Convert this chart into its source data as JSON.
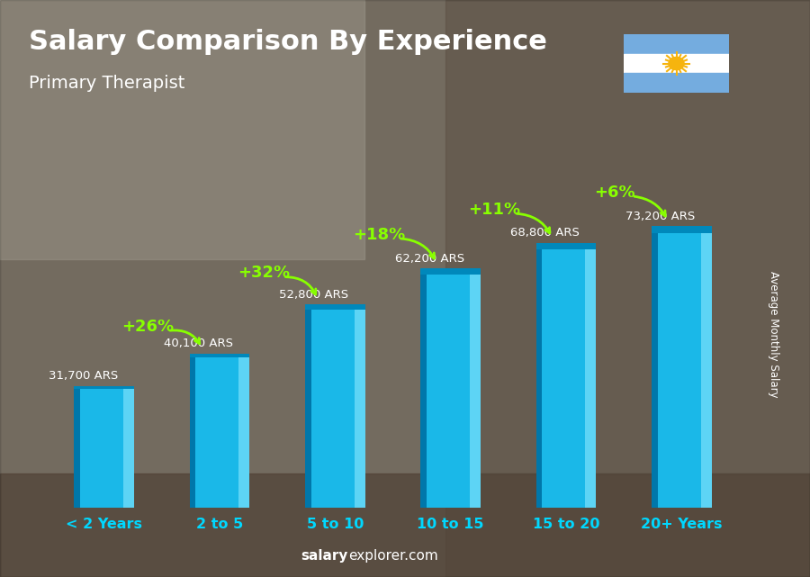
{
  "title": "Salary Comparison By Experience",
  "subtitle": "Primary Therapist",
  "categories": [
    "< 2 Years",
    "2 to 5",
    "5 to 10",
    "10 to 15",
    "15 to 20",
    "20+ Years"
  ],
  "values": [
    31700,
    40100,
    52800,
    62200,
    68800,
    73200
  ],
  "value_labels": [
    "31,700 ARS",
    "40,100 ARS",
    "52,800 ARS",
    "62,200 ARS",
    "68,800 ARS",
    "73,200 ARS"
  ],
  "pct_labels": [
    "+26%",
    "+32%",
    "+18%",
    "+11%",
    "+6%"
  ],
  "bar_color_main": "#1ab8e8",
  "bar_color_light": "#5dd4f5",
  "bar_color_dark": "#0088bb",
  "bar_color_side": "#0077aa",
  "bg_color": "#8a8070",
  "title_color": "#ffffff",
  "subtitle_color": "#ffffff",
  "value_label_color": "#ffffff",
  "pct_color": "#88ff00",
  "xticklabel_color": "#00d8ff",
  "ylabel": "Average Monthly Salary",
  "footer_bold": "salary",
  "footer_rest": "explorer.com",
  "ylabel_color": "#ffffff",
  "ylim_max": 90000,
  "flag_blue": "#74acdf",
  "flag_white": "#ffffff",
  "flag_sun": "#f6b40e"
}
